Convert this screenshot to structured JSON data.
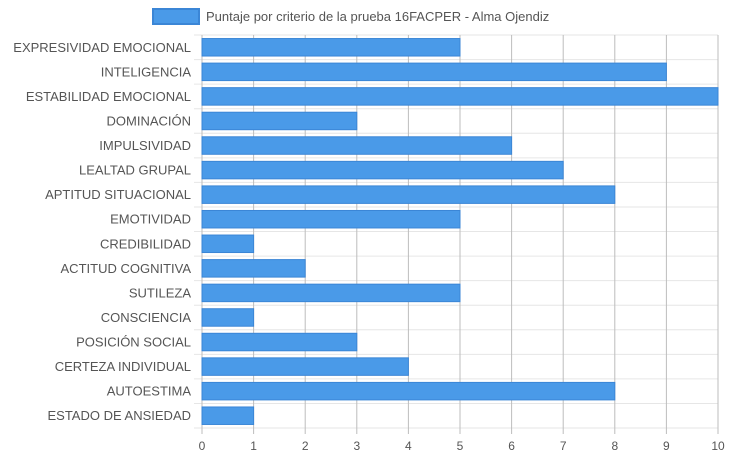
{
  "chart_data": {
    "type": "bar",
    "orientation": "horizontal",
    "categories": [
      "EXPRESIVIDAD EMOCIONAL",
      "INTELIGENCIA",
      "ESTABILIDAD EMOCIONAL",
      "DOMINACIÓN",
      "IMPULSIVIDAD",
      "LEALTAD GRUPAL",
      "APTITUD SITUACIONAL",
      "EMOTIVIDAD",
      "CREDIBILIDAD",
      "ACTITUD COGNITIVA",
      "SUTILEZA",
      "CONSCIENCIA",
      "POSICIÓN SOCIAL",
      "CERTEZA INDIVIDUAL",
      "AUTOESTIMA",
      "ESTADO DE ANSIEDAD"
    ],
    "series": [
      {
        "name": "Puntaje por criterio de la prueba 16FACPER - Alma Ojendiz",
        "values": [
          5,
          9,
          10,
          3,
          6,
          7,
          8,
          5,
          1,
          2,
          5,
          1,
          3,
          4,
          8,
          1
        ]
      }
    ],
    "xlim": [
      0,
      10
    ],
    "xticks": [
      "0",
      "1",
      "2",
      "3",
      "4",
      "5",
      "6",
      "7",
      "8",
      "9",
      "10"
    ],
    "grid": true,
    "legend_position": "top",
    "colors": {
      "bar_fill": "#4a9ae8",
      "bar_border": "#3b86d6",
      "grid": "#e6e6e6",
      "vgrid": "#bdbdbd",
      "text": "#555555"
    }
  }
}
